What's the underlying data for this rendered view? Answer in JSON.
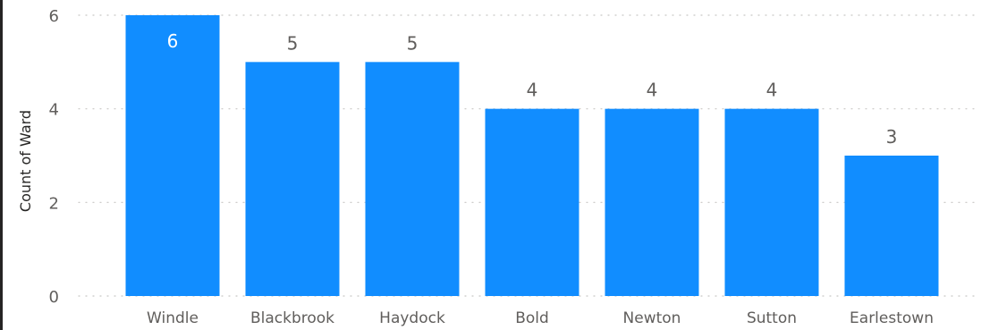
{
  "chart_data": {
    "type": "bar",
    "categories": [
      "Windle",
      "Blackbrook",
      "Haydock",
      "Bold",
      "Newton",
      "Sutton",
      "Earlestown"
    ],
    "values": [
      6,
      5,
      5,
      4,
      4,
      4,
      3
    ],
    "title": "",
    "xlabel": "",
    "ylabel": "Count of Ward",
    "ylim": [
      0,
      6
    ],
    "yticks": [
      0,
      2,
      4,
      6
    ],
    "grid": true,
    "legend": "none",
    "colors": {
      "bar": "#118dff",
      "label_inside": "#ffffff",
      "label_outside": "#605e5c"
    }
  }
}
